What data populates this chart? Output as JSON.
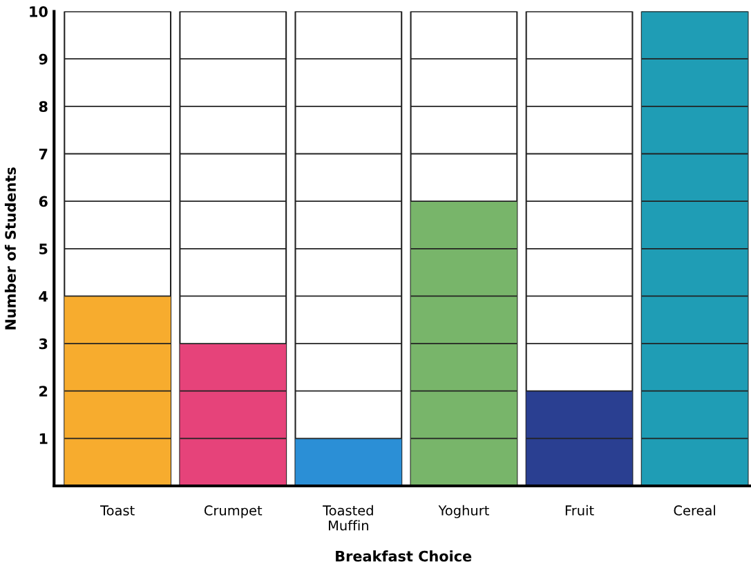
{
  "chart_data": {
    "type": "bar",
    "xlabel": "Breakfast Choice",
    "ylabel": "Number of Students",
    "categories": [
      "Toast",
      "Crumpet",
      "Toasted\nMuffin",
      "Yoghurt",
      "Fruit",
      "Cereal"
    ],
    "values": [
      4,
      3,
      1,
      6,
      2,
      10
    ],
    "colors": [
      "#f7ac2e",
      "#e6437a",
      "#2b8fd6",
      "#78b56a",
      "#2a3f91",
      "#1f9db5"
    ],
    "ylim": [
      0,
      10
    ],
    "yticks": [
      1,
      2,
      3,
      4,
      5,
      6,
      7,
      8,
      9,
      10
    ],
    "grid": "y"
  }
}
